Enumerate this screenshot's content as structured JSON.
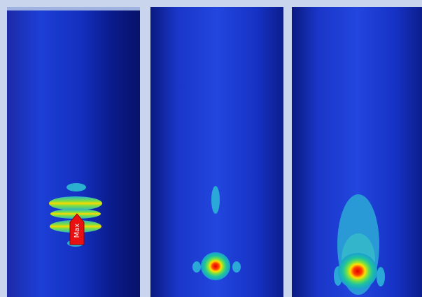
{
  "marker_label": "Max"
}
